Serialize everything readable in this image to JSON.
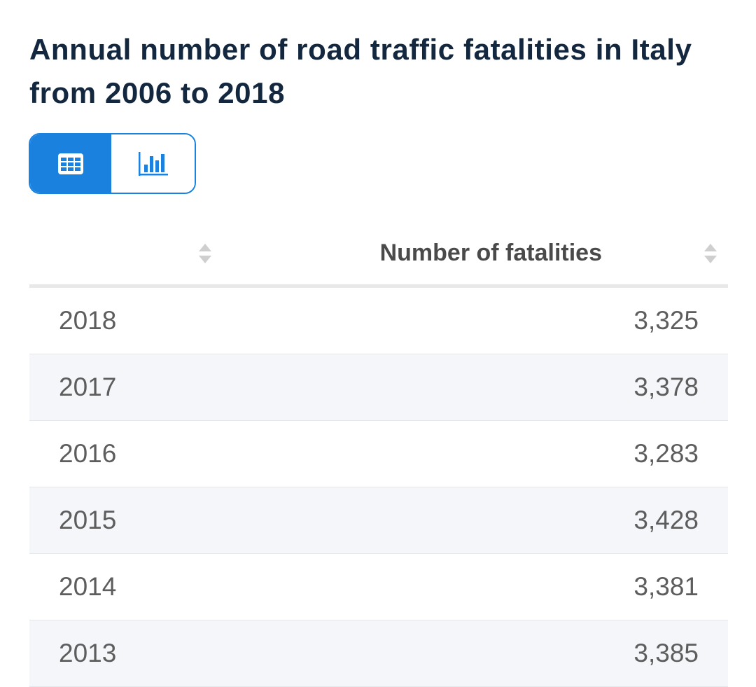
{
  "title": "Annual number of road traffic fatalities in Italy from 2006 to 2018",
  "view_toggle": {
    "table_icon": "table-icon",
    "chart_icon": "bar-chart-icon",
    "active": "table",
    "accent": "#1a82de"
  },
  "table": {
    "columns": [
      "",
      "Number of fatalities"
    ],
    "rows": [
      {
        "year": "2018",
        "value": "3,325"
      },
      {
        "year": "2017",
        "value": "3,378"
      },
      {
        "year": "2016",
        "value": "3,283"
      },
      {
        "year": "2015",
        "value": "3,428"
      },
      {
        "year": "2014",
        "value": "3,381"
      },
      {
        "year": "2013",
        "value": "3,385"
      }
    ]
  }
}
